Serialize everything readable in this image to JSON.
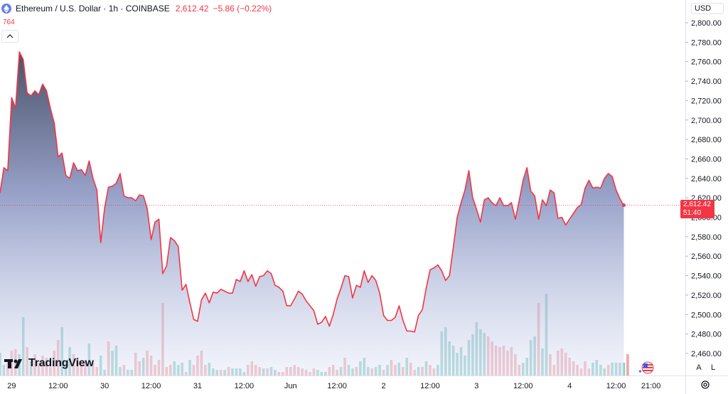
{
  "header": {
    "title": "Ethereum / U.S. Dollar · 1h · COINBASE",
    "last": "2,612.42",
    "change": "−5.86 (−0.22%)"
  },
  "volume_label": "764",
  "currency": "USD",
  "price_tag": {
    "price": "2,612.42",
    "countdown": "51:40"
  },
  "logo": "TradingView",
  "scale_buttons": {
    "auto": "A",
    "log": "L"
  },
  "colors": {
    "line": "#f23645",
    "area_top": "#2a3450",
    "area_bottom": "#e6ebf9",
    "vol_up": "#89c9c2",
    "vol_down": "#f2a4aa"
  },
  "chart_data": {
    "type": "area",
    "yaxis": {
      "range": [
        2440,
        2810
      ],
      "ticks": [
        "2,800.00",
        "2,780.00",
        "2,760.00",
        "2,740.00",
        "2,720.00",
        "2,700.00",
        "2,680.00",
        "2,660.00",
        "2,640.00",
        "2,620.00",
        "2,600.00",
        "2,580.00",
        "2,560.00",
        "2,540.00",
        "2,520.00",
        "2,500.00",
        "2,480.00",
        "2,460.00"
      ],
      "tick_values": [
        2800,
        2780,
        2760,
        2740,
        2720,
        2700,
        2680,
        2660,
        2640,
        2620,
        2600,
        2580,
        2560,
        2540,
        2520,
        2500,
        2480,
        2460
      ]
    },
    "xaxis": {
      "labels": [
        {
          "text": "29",
          "bar": 3
        },
        {
          "text": "12:00",
          "bar": 15
        },
        {
          "text": "30",
          "bar": 27
        },
        {
          "text": "12:00",
          "bar": 39
        },
        {
          "text": "31",
          "bar": 51
        },
        {
          "text": "12:00",
          "bar": 63
        },
        {
          "text": "Jun",
          "bar": 75
        },
        {
          "text": "12:00",
          "bar": 87
        },
        {
          "text": "2",
          "bar": 99
        },
        {
          "text": "12:00",
          "bar": 111
        },
        {
          "text": "3",
          "bar": 123
        },
        {
          "text": "12:00",
          "bar": 135
        },
        {
          "text": "4",
          "bar": 147
        },
        {
          "text": "12:00",
          "bar": 159
        },
        {
          "text": "21:00",
          "bar": 168
        }
      ]
    },
    "last_price": 2612.42,
    "series": [
      {
        "values": [
          2625,
          2651,
          2648,
          2723,
          2712,
          2770,
          2762,
          2728,
          2725,
          2730,
          2726,
          2737,
          2730,
          2712,
          2697,
          2662,
          2666,
          2643,
          2640,
          2656,
          2648,
          2649,
          2643,
          2658,
          2640,
          2628,
          2574,
          2610,
          2631,
          2632,
          2635,
          2645,
          2622,
          2620,
          2620,
          2617,
          2623,
          2622,
          2609,
          2577,
          2595,
          2598,
          2542,
          2550,
          2579,
          2576,
          2570,
          2525,
          2531,
          2512,
          2495,
          2493,
          2515,
          2522,
          2512,
          2523,
          2522,
          2526,
          2524,
          2522,
          2522,
          2536,
          2534,
          2545,
          2534,
          2541,
          2529,
          2539,
          2540,
          2545,
          2542,
          2530,
          2528,
          2524,
          2509,
          2509,
          2516,
          2524,
          2521,
          2514,
          2509,
          2504,
          2490,
          2492,
          2498,
          2488,
          2500,
          2516,
          2527,
          2540,
          2539,
          2517,
          2530,
          2528,
          2545,
          2533,
          2540,
          2535,
          2522,
          2499,
          2494,
          2494,
          2497,
          2509,
          2494,
          2483,
          2483,
          2482,
          2499,
          2505,
          2527,
          2546,
          2548,
          2551,
          2545,
          2535,
          2540,
          2569,
          2600,
          2615,
          2628,
          2648,
          2620,
          2608,
          2595,
          2618,
          2620,
          2615,
          2612,
          2620,
          2612,
          2612,
          2615,
          2598,
          2617,
          2638,
          2651,
          2627,
          2622,
          2598,
          2618,
          2612,
          2628,
          2625,
          2599,
          2600,
          2592,
          2598,
          2604,
          2610,
          2613,
          2630,
          2638,
          2630,
          2631,
          2630,
          2640,
          2645,
          2642,
          2628,
          2619,
          2612
        ]
      }
    ],
    "volume": [
      {
        "v": 32,
        "up": true
      },
      {
        "v": 15,
        "up": true
      },
      {
        "v": 18,
        "up": false
      },
      {
        "v": 35,
        "up": false
      },
      {
        "v": 37,
        "up": false
      },
      {
        "v": 30,
        "up": true
      },
      {
        "v": 82,
        "up": true
      },
      {
        "v": 40,
        "up": false
      },
      {
        "v": 20,
        "up": true
      },
      {
        "v": 30,
        "up": false
      },
      {
        "v": 18,
        "up": false
      },
      {
        "v": 28,
        "up": false
      },
      {
        "v": 25,
        "up": false
      },
      {
        "v": 12,
        "up": false
      },
      {
        "v": 35,
        "up": false
      },
      {
        "v": 50,
        "up": false
      },
      {
        "v": 68,
        "up": true
      },
      {
        "v": 20,
        "up": true
      },
      {
        "v": 40,
        "up": true
      },
      {
        "v": 30,
        "up": false
      },
      {
        "v": 25,
        "up": false
      },
      {
        "v": 18,
        "up": false
      },
      {
        "v": 20,
        "up": false
      },
      {
        "v": 45,
        "up": true
      },
      {
        "v": 18,
        "up": false
      },
      {
        "v": 12,
        "up": false
      },
      {
        "v": 28,
        "up": true
      },
      {
        "v": 8,
        "up": true
      },
      {
        "v": 48,
        "up": false
      },
      {
        "v": 35,
        "up": true
      },
      {
        "v": 42,
        "up": true
      },
      {
        "v": 12,
        "up": true
      },
      {
        "v": 15,
        "up": false
      },
      {
        "v": 8,
        "up": true
      },
      {
        "v": 8,
        "up": true
      },
      {
        "v": 32,
        "up": false
      },
      {
        "v": 20,
        "up": false
      },
      {
        "v": 25,
        "up": true
      },
      {
        "v": 35,
        "up": false
      },
      {
        "v": 28,
        "up": false
      },
      {
        "v": 15,
        "up": false
      },
      {
        "v": 22,
        "up": false
      },
      {
        "v": 102,
        "up": false
      },
      {
        "v": 12,
        "up": false
      },
      {
        "v": 15,
        "up": false
      },
      {
        "v": 20,
        "up": true
      },
      {
        "v": 15,
        "up": true
      },
      {
        "v": 18,
        "up": true
      },
      {
        "v": 5,
        "up": false
      },
      {
        "v": 22,
        "up": true
      },
      {
        "v": 15,
        "up": false
      },
      {
        "v": 28,
        "up": false
      },
      {
        "v": 35,
        "up": false
      },
      {
        "v": 15,
        "up": false
      },
      {
        "v": 18,
        "up": true
      },
      {
        "v": 10,
        "up": true
      },
      {
        "v": 8,
        "up": true
      },
      {
        "v": 8,
        "up": false
      },
      {
        "v": 8,
        "up": true
      },
      {
        "v": 12,
        "up": false
      },
      {
        "v": 10,
        "up": true
      },
      {
        "v": 10,
        "up": true
      },
      {
        "v": 10,
        "up": true
      },
      {
        "v": 5,
        "up": true
      },
      {
        "v": 15,
        "up": false
      },
      {
        "v": 20,
        "up": false
      },
      {
        "v": 15,
        "up": false
      },
      {
        "v": 12,
        "up": false
      },
      {
        "v": 10,
        "up": true
      },
      {
        "v": 10,
        "up": false
      },
      {
        "v": 12,
        "up": true
      },
      {
        "v": 8,
        "up": true
      },
      {
        "v": 5,
        "up": false
      },
      {
        "v": 5,
        "up": false
      },
      {
        "v": 12,
        "up": false
      },
      {
        "v": 12,
        "up": false
      },
      {
        "v": 15,
        "up": false
      },
      {
        "v": 12,
        "up": false
      },
      {
        "v": 10,
        "up": false
      },
      {
        "v": 8,
        "up": false
      },
      {
        "v": 5,
        "up": false
      },
      {
        "v": 10,
        "up": false
      },
      {
        "v": 8,
        "up": true
      },
      {
        "v": 5,
        "up": true
      },
      {
        "v": 5,
        "up": true
      },
      {
        "v": 12,
        "up": false
      },
      {
        "v": 15,
        "up": false
      },
      {
        "v": 8,
        "up": false
      },
      {
        "v": 12,
        "up": true
      },
      {
        "v": 25,
        "up": false
      },
      {
        "v": 15,
        "up": true
      },
      {
        "v": 10,
        "up": true
      },
      {
        "v": 12,
        "up": false
      },
      {
        "v": 20,
        "up": true
      },
      {
        "v": 25,
        "up": true
      },
      {
        "v": 12,
        "up": true
      },
      {
        "v": 10,
        "up": false
      },
      {
        "v": 12,
        "up": true
      },
      {
        "v": 15,
        "up": true
      },
      {
        "v": 8,
        "up": false
      },
      {
        "v": 15,
        "up": true
      },
      {
        "v": 22,
        "up": false
      },
      {
        "v": 15,
        "up": false
      },
      {
        "v": 18,
        "up": true
      },
      {
        "v": 12,
        "up": false
      },
      {
        "v": 25,
        "up": true
      },
      {
        "v": 18,
        "up": false
      },
      {
        "v": 8,
        "up": false
      },
      {
        "v": 12,
        "up": true
      },
      {
        "v": 12,
        "up": false
      },
      {
        "v": 20,
        "up": true
      },
      {
        "v": 15,
        "up": false
      },
      {
        "v": 10,
        "up": false
      },
      {
        "v": 15,
        "up": true
      },
      {
        "v": 62,
        "up": true
      },
      {
        "v": 68,
        "up": true
      },
      {
        "v": 48,
        "up": true
      },
      {
        "v": 42,
        "up": true
      },
      {
        "v": 32,
        "up": true
      },
      {
        "v": 40,
        "up": true
      },
      {
        "v": 28,
        "up": true
      },
      {
        "v": 50,
        "up": true
      },
      {
        "v": 58,
        "up": true
      },
      {
        "v": 75,
        "up": true
      },
      {
        "v": 65,
        "up": true
      },
      {
        "v": 60,
        "up": true
      },
      {
        "v": 55,
        "up": false
      },
      {
        "v": 48,
        "up": false
      },
      {
        "v": 42,
        "up": false
      },
      {
        "v": 40,
        "up": false
      },
      {
        "v": 42,
        "up": false
      },
      {
        "v": 35,
        "up": false
      },
      {
        "v": 40,
        "up": false
      },
      {
        "v": 30,
        "up": false
      },
      {
        "v": 15,
        "up": false
      },
      {
        "v": 18,
        "up": true
      },
      {
        "v": 25,
        "up": true
      },
      {
        "v": 50,
        "up": true
      },
      {
        "v": 55,
        "up": true
      },
      {
        "v": 102,
        "up": false
      },
      {
        "v": 38,
        "up": true
      },
      {
        "v": 115,
        "up": true
      },
      {
        "v": 30,
        "up": false
      },
      {
        "v": 15,
        "up": false
      },
      {
        "v": 35,
        "up": false
      },
      {
        "v": 38,
        "up": false
      },
      {
        "v": 32,
        "up": false
      },
      {
        "v": 25,
        "up": false
      },
      {
        "v": 20,
        "up": false
      },
      {
        "v": 15,
        "up": false
      },
      {
        "v": 10,
        "up": false
      },
      {
        "v": 20,
        "up": false
      },
      {
        "v": 10,
        "up": false
      },
      {
        "v": 18,
        "up": true
      },
      {
        "v": 22,
        "up": true
      },
      {
        "v": 15,
        "up": true
      },
      {
        "v": 10,
        "up": true
      },
      {
        "v": 15,
        "up": false
      },
      {
        "v": 18,
        "up": true
      },
      {
        "v": 18,
        "up": true
      },
      {
        "v": 18,
        "up": true
      },
      {
        "v": 18,
        "up": true
      },
      {
        "v": 30,
        "up": false
      }
    ]
  }
}
